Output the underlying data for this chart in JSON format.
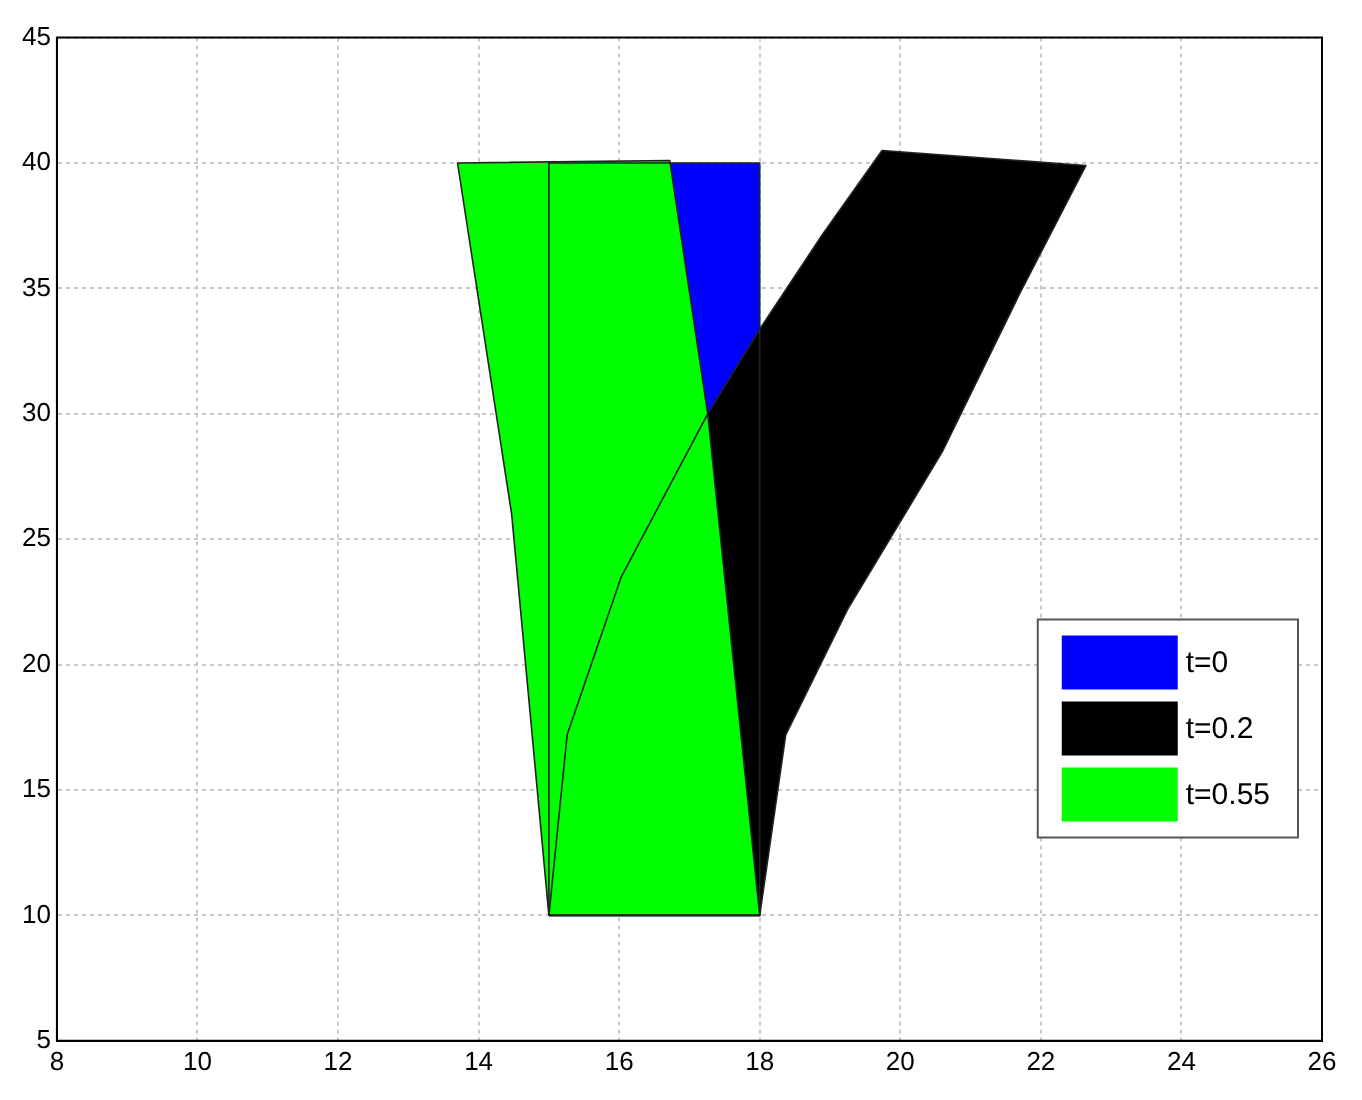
{
  "chart_data": {
    "type": "area",
    "xlim": [
      8,
      26
    ],
    "ylim": [
      5,
      45
    ],
    "xticks": [
      8,
      10,
      12,
      14,
      16,
      18,
      20,
      22,
      24,
      26
    ],
    "yticks": [
      5,
      10,
      15,
      20,
      25,
      30,
      35,
      40,
      45
    ],
    "grid": true,
    "legend": "right",
    "series": [
      {
        "name": "t=0",
        "color": "#0000ff",
        "x": [
          15,
          18,
          18,
          15,
          15
        ],
        "values": [
          10,
          10,
          40,
          40,
          10
        ]
      },
      {
        "name": "t=0.2",
        "color": "#000000",
        "x": [
          15,
          18,
          18.37,
          19.25,
          20.6,
          21.7,
          22.64,
          19.74,
          18.88,
          18.03,
          17.26,
          16.03,
          15.26,
          15
        ],
        "values": [
          10,
          10,
          17.2,
          22.2,
          28.5,
          34.8,
          39.9,
          40.5,
          37.1,
          33.5,
          30,
          23.5,
          17.2,
          10
        ]
      },
      {
        "name": "t=0.55",
        "color": "#00ff00",
        "x": [
          15,
          18,
          17.26,
          16.72,
          13.7,
          14.47,
          15
        ],
        "values": [
          10,
          10,
          30,
          40.1,
          40,
          26,
          10
        ]
      }
    ]
  }
}
